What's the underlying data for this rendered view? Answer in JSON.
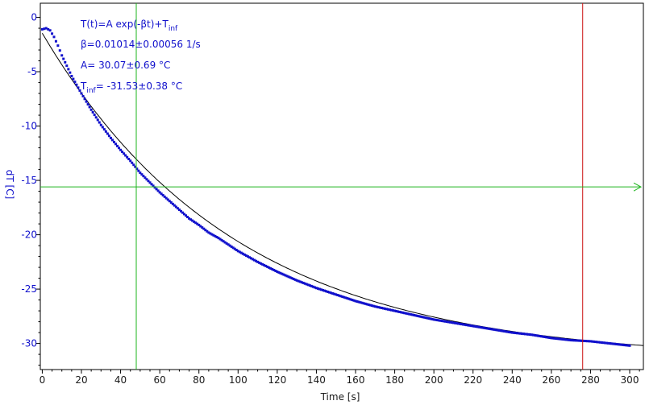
{
  "chart_data": {
    "type": "scatter",
    "xlabel": "Time [s]",
    "ylabel": "dT [C]",
    "xlim": [
      -1,
      307
    ],
    "ylim": [
      -32.4,
      1.3
    ],
    "x_ticks": [
      0,
      20,
      40,
      60,
      80,
      100,
      120,
      140,
      160,
      180,
      200,
      220,
      240,
      260,
      280,
      300
    ],
    "y_ticks": [
      0,
      -5,
      -10,
      -15,
      -20,
      -25,
      -30
    ],
    "grid": false,
    "legend": "none",
    "annotations": [
      {
        "text": "T(t)=A exp(-βt)+T",
        "sub": "inf"
      },
      {
        "text": "β=0.01014±0.00056 1/s"
      },
      {
        "text": "A= 30.07±0.69 °C"
      },
      {
        "pre": "T",
        "sub": "inf",
        "text": "= -31.53±0.38 °C"
      }
    ],
    "fit": {
      "A": 30.07,
      "beta": 0.01014,
      "T_inf": -31.53
    },
    "series": [
      {
        "kind": "measured",
        "x": [
          0,
          2,
          4,
          6,
          8,
          10,
          15,
          20,
          25,
          30,
          35,
          40,
          45,
          50,
          55,
          60,
          65,
          70,
          75,
          80,
          85,
          90,
          95,
          100,
          110,
          120,
          130,
          140,
          150,
          160,
          170,
          180,
          190,
          200,
          210,
          220,
          230,
          240,
          250,
          260,
          270,
          280,
          290,
          300
        ],
        "y": [
          -1.1,
          -1.0,
          -1.2,
          -1.8,
          -2.6,
          -3.5,
          -5.4,
          -7.0,
          -8.5,
          -9.9,
          -11.1,
          -12.2,
          -13.2,
          -14.3,
          -15.2,
          -16.1,
          -16.9,
          -17.7,
          -18.5,
          -19.1,
          -19.8,
          -20.3,
          -20.9,
          -21.5,
          -22.5,
          -23.4,
          -24.2,
          -24.9,
          -25.5,
          -26.1,
          -26.6,
          -27.0,
          -27.4,
          -27.8,
          -28.1,
          -28.4,
          -28.7,
          -29.0,
          -29.2,
          -29.5,
          -29.7,
          -29.8,
          -30.0,
          -30.2
        ]
      }
    ],
    "markers": {
      "vertical_green_x": 48,
      "vertical_red_x": 276,
      "horizontal_green_y": -15.6
    },
    "colors": {
      "data": "#1010cc",
      "fit": "#000000",
      "green": "#1db51d",
      "red": "#cc1111",
      "axis": "#000000"
    }
  }
}
